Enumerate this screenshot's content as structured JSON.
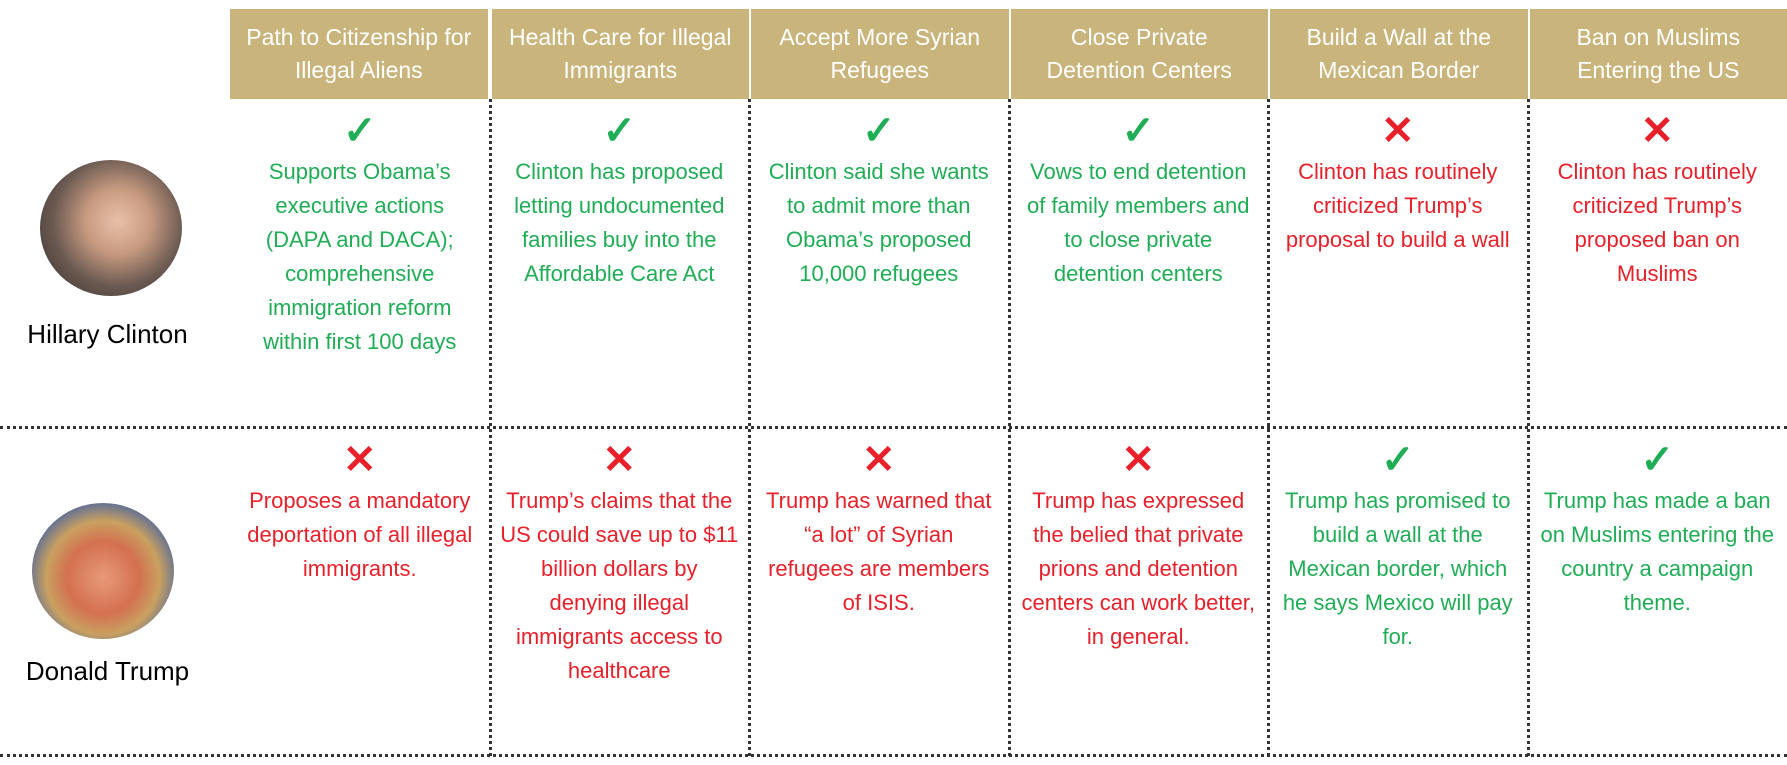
{
  "header": {
    "columns": [
      "Path to Citizenship for Illegal Aliens",
      "Health Care for Illegal Immigrants",
      "Accept More Syrian Refugees",
      "Close Private Detention Centers",
      "Build a Wall at the Mexican Border",
      "Ban on Muslims Entering the US"
    ]
  },
  "rows": [
    {
      "name": "Hillary Clinton",
      "cells": [
        {
          "mark": "✓",
          "color": "#1fad55",
          "text": "Supports Obama’s executive actions (DAPA and DACA); comprehensive immigration reform within first 100 days"
        },
        {
          "mark": "✓",
          "color": "#1fad55",
          "text": "Clinton has proposed letting undocumented families buy into the Affordable Care Act"
        },
        {
          "mark": "✓",
          "color": "#1fad55",
          "text": "Clinton said she wants to admit more than Obama’s proposed 10,000 refugees"
        },
        {
          "mark": "✓",
          "color": "#1fad55",
          "text": "Vows to end detention of family members and to close private detention centers"
        },
        {
          "mark": "✕",
          "color": "#e8202a",
          "text": "Clinton has routinely criticized Trump’s proposal to build a wall"
        },
        {
          "mark": "✕",
          "color": "#e8202a",
          "text": "Clinton has routinely criticized Trump’s proposed ban on Muslims"
        }
      ]
    },
    {
      "name": "Donald Trump",
      "cells": [
        {
          "mark": "✕",
          "color": "#e8202a",
          "text": "Proposes a mandatory deportation of all illegal immigrants."
        },
        {
          "mark": "✕",
          "color": "#e8202a",
          "text": "Trump’s claims that the US could save up to $11 billion dollars by denying illegal immigrants access to healthcare"
        },
        {
          "mark": "✕",
          "color": "#e8202a",
          "text": "Trump has warned that “a lot” of Syrian refugees are members of ISIS."
        },
        {
          "mark": "✕",
          "color": "#e8202a",
          "text": "Trump has expressed the belied that private prions and detention centers can work better, in general."
        },
        {
          "mark": "✓",
          "color": "#1fad55",
          "text": "Trump has promised to build a wall at the Mexican border, which he says Mexico will pay for."
        },
        {
          "mark": "✓",
          "color": "#1fad55",
          "text": "Trump has made a ban on Muslims entering the country a campaign theme."
        }
      ]
    }
  ]
}
